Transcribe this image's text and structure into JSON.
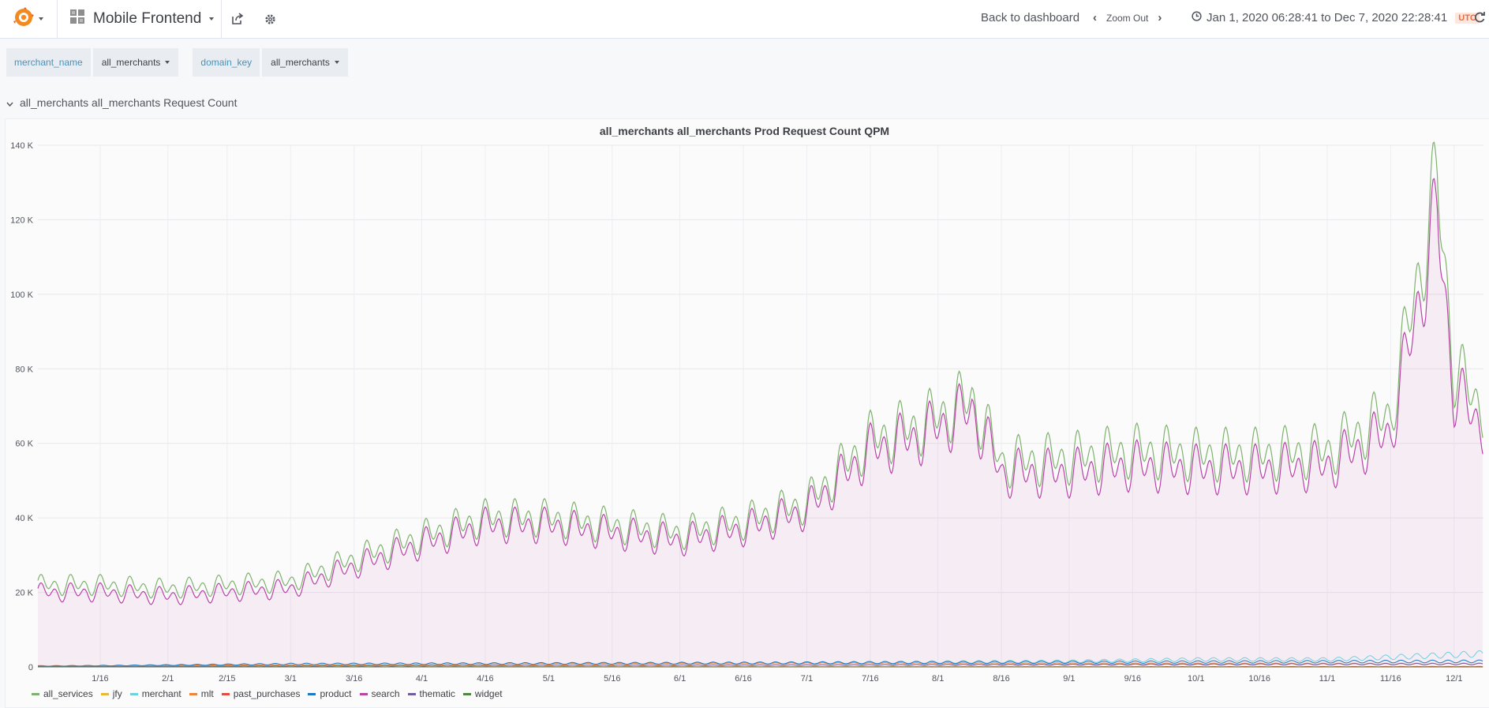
{
  "topnav": {
    "dashboard_title": "Mobile Frontend",
    "back_label": "Back to dashboard",
    "zoom_label": "Zoom Out",
    "time_range": "Jan 1, 2020 06:28:41 to Dec 7, 2020 22:28:41",
    "timezone": "UTC",
    "icons": {
      "logo": "grafana-logo-icon",
      "grid": "dashboard-grid-icon",
      "share": "share-icon",
      "settings": "gear-icon",
      "clock": "clock-icon",
      "refresh": "refresh-icon"
    }
  },
  "variables": [
    {
      "label": "merchant_name",
      "value": "all_merchants"
    },
    {
      "label": "domain_key",
      "value": "all_merchants"
    }
  ],
  "row": {
    "title": "all_merchants all_merchants Request Count"
  },
  "panel": {
    "title": "all_merchants all_merchants Prod Request Count QPM"
  },
  "legend": [
    {
      "name": "all_services",
      "color": "#7eb26d"
    },
    {
      "name": "jfy",
      "color": "#eab839"
    },
    {
      "name": "merchant",
      "color": "#6ed0e0"
    },
    {
      "name": "mlt",
      "color": "#ef843c"
    },
    {
      "name": "past_purchases",
      "color": "#e24d42"
    },
    {
      "name": "product",
      "color": "#1f78c1"
    },
    {
      "name": "search",
      "color": "#ba43a9"
    },
    {
      "name": "thematic",
      "color": "#705da0"
    },
    {
      "name": "widget",
      "color": "#508642"
    }
  ],
  "chart_data": {
    "type": "line",
    "title": "all_merchants all_merchants Prod Request Count QPM",
    "x_ticks": [
      "1/16",
      "2/1",
      "2/15",
      "3/1",
      "3/16",
      "4/1",
      "4/16",
      "5/1",
      "5/16",
      "6/1",
      "6/16",
      "7/1",
      "7/16",
      "8/1",
      "8/16",
      "9/1",
      "9/16",
      "10/1",
      "10/16",
      "11/1",
      "11/16",
      "12/1"
    ],
    "y_ticks": [
      "0",
      "20 K",
      "40 K",
      "60 K",
      "80 K",
      "100 K",
      "120 K",
      "140 K"
    ],
    "ylim": [
      0,
      140000
    ],
    "grid": true,
    "legend_position": "bottom",
    "series": [
      {
        "name": "all_services",
        "x": [
          "1/1",
          "1/16",
          "2/1",
          "2/15",
          "3/1",
          "3/16",
          "4/1",
          "4/16",
          "5/1",
          "5/16",
          "6/1",
          "6/16",
          "7/1",
          "7/16",
          "7/28",
          "8/9",
          "8/16",
          "9/1",
          "9/16",
          "10/1",
          "10/16",
          "11/1",
          "11/16",
          "11/27",
          "12/1",
          "12/7"
        ],
        "values": [
          22000,
          22000,
          21000,
          22000,
          23000,
          29000,
          35000,
          40000,
          40000,
          38000,
          36000,
          39000,
          44000,
          61000,
          65000,
          72000,
          55000,
          56000,
          58000,
          57000,
          57000,
          58000,
          68000,
          130000,
          80000,
          70000
        ]
      },
      {
        "name": "search",
        "x": [
          "1/1",
          "1/16",
          "2/1",
          "2/15",
          "3/1",
          "3/16",
          "4/1",
          "4/16",
          "5/1",
          "5/16",
          "6/1",
          "6/16",
          "7/1",
          "7/16",
          "7/28",
          "8/9",
          "8/16",
          "9/1",
          "9/16",
          "10/1",
          "10/16",
          "11/1",
          "11/16",
          "11/27",
          "12/1",
          "12/7"
        ],
        "values": [
          20000,
          20000,
          19000,
          20000,
          21000,
          27000,
          33000,
          38000,
          38000,
          36000,
          34000,
          37000,
          42000,
          58000,
          62000,
          69000,
          52000,
          52000,
          54000,
          53000,
          53000,
          54000,
          63000,
          121000,
          74000,
          65000
        ]
      },
      {
        "name": "merchant",
        "x": [
          "1/1",
          "9/1",
          "10/1",
          "11/1",
          "12/7"
        ],
        "values": [
          0,
          1500,
          2000,
          2000,
          3500
        ]
      },
      {
        "name": "mlt",
        "x": [
          "1/1",
          "7/1",
          "12/7"
        ],
        "values": [
          300,
          900,
          800
        ]
      },
      {
        "name": "product",
        "x": [
          "1/1",
          "3/1",
          "12/7"
        ],
        "values": [
          200,
          800,
          1500
        ]
      },
      {
        "name": "thematic",
        "x": [
          "1/1",
          "12/7"
        ],
        "values": [
          100,
          800
        ]
      },
      {
        "name": "jfy",
        "x": [
          "1/1",
          "12/7"
        ],
        "values": [
          0,
          0
        ]
      },
      {
        "name": "past_purchases",
        "x": [
          "1/1",
          "12/7"
        ],
        "values": [
          0,
          100
        ]
      },
      {
        "name": "widget",
        "x": [
          "1/1",
          "12/7"
        ],
        "values": [
          0,
          0
        ]
      }
    ]
  }
}
